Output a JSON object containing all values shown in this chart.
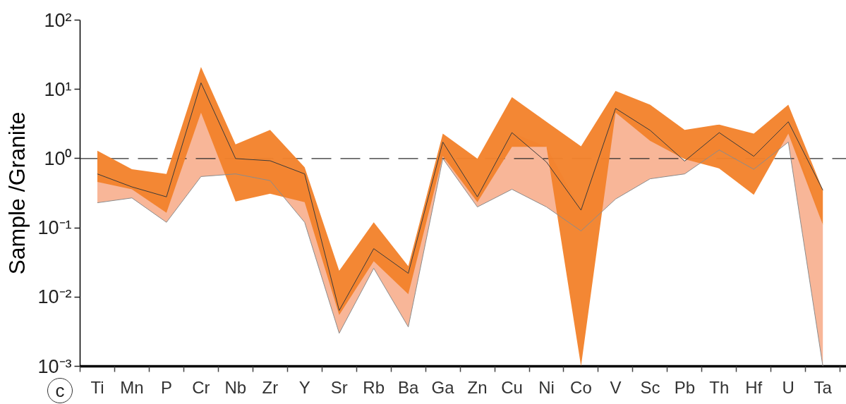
{
  "chart_data": {
    "type": "line",
    "ylabel": "Sample /Granite",
    "annotations": [
      "c"
    ],
    "categories": [
      "Ti",
      "Mn",
      "P",
      "Cr",
      "Nb",
      "Zr",
      "Y",
      "Sr",
      "Rb",
      "Ba",
      "Ga",
      "Zn",
      "Cu",
      "Ni",
      "Co",
      "V",
      "Sc",
      "Pb",
      "Th",
      "Hf",
      "U",
      "Ta"
    ],
    "log": true,
    "ylim": [
      0.001,
      100
    ],
    "yticks": [
      {
        "value": 0.001,
        "label": "10⁻³"
      },
      {
        "value": 0.01,
        "label": "10⁻²"
      },
      {
        "value": 0.1,
        "label": "10⁻¹"
      },
      {
        "value": 1,
        "label": "10⁰"
      },
      {
        "value": 10,
        "label": "10¹"
      },
      {
        "value": 100,
        "label": "10²"
      }
    ],
    "grid": false,
    "ref_lines": [
      {
        "axis": "y",
        "value": 1,
        "line_style": "dashed",
        "color": "#2b2b2b"
      }
    ],
    "series": [
      {
        "color": "#f8b698",
        "values": [
          null,
          null,
          null,
          null,
          null,
          null,
          null,
          null,
          null,
          null,
          null,
          null,
          null,
          null,
          null,
          null,
          null,
          null,
          null,
          null,
          null,
          null
        ],
        "lower": [
          0.23,
          0.27,
          0.12,
          0.55,
          0.6,
          0.48,
          0.12,
          0.003,
          0.026,
          0.0037,
          1.0,
          0.2,
          0.36,
          0.2,
          0.09,
          0.26,
          0.51,
          0.6,
          1.33,
          0.7,
          1.73,
          0.001
        ],
        "upper": [
          0.6,
          0.39,
          0.28,
          12.4,
          1.0,
          0.93,
          0.6,
          0.0064,
          0.05,
          0.022,
          1.73,
          0.28,
          2.37,
          1.48,
          0.18,
          5.3,
          2.56,
          0.92,
          2.37,
          1.08,
          3.4,
          0.11
        ]
      },
      {
        "color": "#f2822c",
        "values": [
          null,
          null,
          null,
          null,
          null,
          null,
          null,
          null,
          null,
          null,
          null,
          null,
          null,
          null,
          null,
          null,
          null,
          null,
          null,
          null,
          null,
          null
        ],
        "lower": [
          0.46,
          0.36,
          0.165,
          4.6,
          0.24,
          0.31,
          0.235,
          0.0055,
          0.033,
          0.011,
          1.08,
          0.235,
          1.48,
          1.48,
          0.001,
          4.6,
          1.8,
          0.98,
          0.72,
          0.3,
          2.3,
          0.11
        ],
        "upper": [
          1.3,
          0.7,
          0.6,
          21,
          1.6,
          2.6,
          0.75,
          0.024,
          0.12,
          0.028,
          2.3,
          1.0,
          7.7,
          3.4,
          1.5,
          9.5,
          6,
          2.6,
          3.1,
          2.3,
          6,
          0.35
        ]
      },
      {
        "color": "#3a3a3a",
        "values": [
          0.6,
          0.39,
          0.28,
          12.4,
          1.0,
          0.93,
          0.6,
          0.0064,
          0.05,
          0.022,
          1.73,
          0.28,
          2.37,
          0.89,
          0.18,
          5.3,
          2.56,
          0.92,
          2.37,
          1.08,
          3.4,
          0.35
        ]
      },
      {
        "color": "#8c8c8c",
        "values": [
          0.23,
          0.27,
          0.12,
          0.55,
          0.6,
          0.48,
          0.12,
          0.003,
          0.026,
          0.0037,
          1.0,
          0.2,
          0.36,
          0.2,
          0.09,
          0.26,
          0.51,
          0.6,
          1.33,
          0.7,
          1.73,
          0.001
        ]
      }
    ]
  }
}
